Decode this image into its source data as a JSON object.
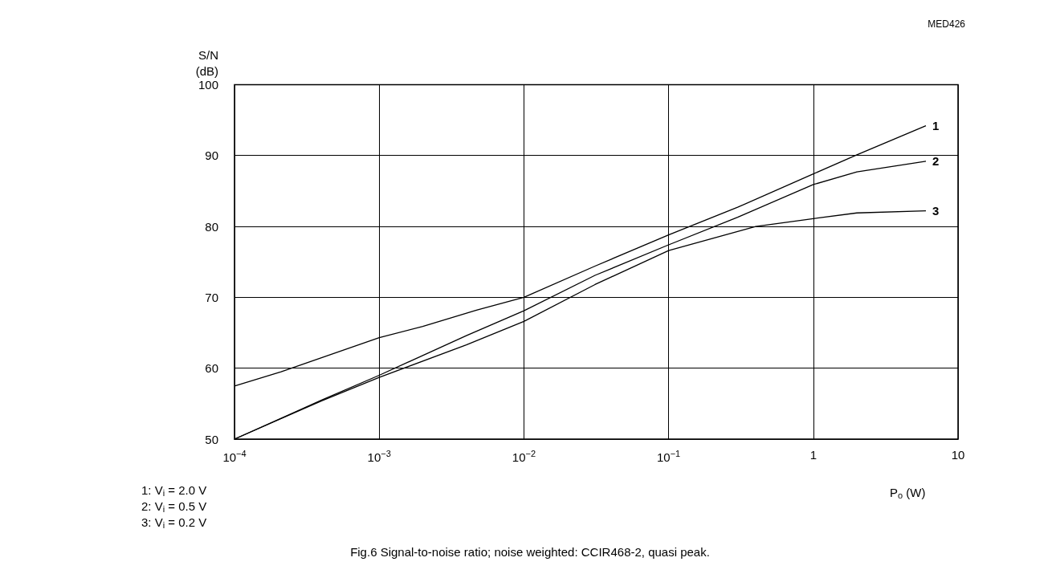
{
  "chart_data": {
    "type": "line",
    "xlabel": "P$_{o}$ (W)",
    "ylabel": "S/N\n(dB)",
    "log": "x",
    "grid": true,
    "legend": false,
    "marker": "none",
    "line_style": "solid",
    "xlim": [
      0.0001,
      10
    ],
    "ylim": [
      50,
      100
    ],
    "xticks": [
      {
        "value": 0.0001,
        "label": "10$^{−4}$"
      },
      {
        "value": 0.001,
        "label": "10$^{−3}$"
      },
      {
        "value": 0.01,
        "label": "10$^{−2}$"
      },
      {
        "value": 0.1,
        "label": "10$^{−1}$"
      },
      1,
      10
    ],
    "yticks": [
      50,
      60,
      70,
      80,
      90,
      100
    ],
    "series": [
      {
        "name": "1",
        "color": "#000000",
        "x": [
          0.0001,
          0.00021,
          0.001,
          0.002,
          0.0047,
          0.01,
          0.031,
          0.1,
          0.3,
          1,
          2,
          6
        ],
        "values": [
          57.5,
          59.5,
          64.3,
          65.9,
          68.2,
          70.0,
          74.4,
          78.8,
          82.7,
          87.4,
          90.1,
          94.2
        ]
      },
      {
        "name": "2",
        "color": "#000000",
        "x": [
          0.0001,
          0.0004,
          0.001,
          0.004,
          0.01,
          0.031,
          0.1,
          0.3,
          1,
          2,
          6
        ],
        "values": [
          50,
          55.5,
          59.0,
          64.6,
          68.1,
          73.1,
          77.4,
          81.3,
          85.9,
          87.7,
          89.2
        ]
      },
      {
        "name": "3",
        "color": "#000000",
        "x": [
          0.0001,
          0.0004,
          0.001,
          0.004,
          0.01,
          0.031,
          0.1,
          0.2,
          0.4,
          1,
          2,
          6
        ],
        "values": [
          50,
          55.4,
          58.7,
          63.3,
          66.6,
          71.8,
          76.6,
          78.3,
          80.0,
          81.1,
          81.9,
          82.2
        ]
      }
    ],
    "annotations": [
      "MED426",
      "1: V$_{i}$ = 2.0 V",
      "2: V$_{i}$ = 0.5 V",
      "3: V$_{i}$ = 0.2 V",
      "Fig.6 Signal-to-noise ratio; noise weighted: CCIR468-2, quasi peak."
    ]
  }
}
